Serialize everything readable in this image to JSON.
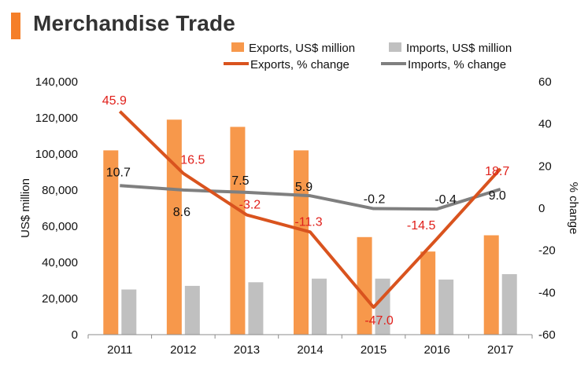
{
  "title": "Merchandise Trade",
  "colors": {
    "exports_bar": "#f7984b",
    "imports_bar": "#c0c0c0",
    "exports_line": "#d9531e",
    "imports_line": "#7f7f7f",
    "exports_label": "#e0201b",
    "imports_label": "#111111",
    "title_accent": "#f57f29"
  },
  "chart_data": {
    "type": "bar+line",
    "categories": [
      "2011",
      "2012",
      "2013",
      "2014",
      "2015",
      "2016",
      "2017"
    ],
    "series": [
      {
        "name": "Exports, US$ million",
        "type": "bar",
        "axis": "left",
        "values": [
          102000,
          119000,
          115000,
          102000,
          54000,
          46000,
          55000
        ]
      },
      {
        "name": "Imports, US$ million",
        "type": "bar",
        "axis": "left",
        "values": [
          25000,
          27000,
          29000,
          31000,
          31000,
          30500,
          33500
        ]
      },
      {
        "name": "Exports, % change",
        "type": "line",
        "axis": "right",
        "values": [
          45.9,
          16.5,
          -3.2,
          -11.3,
          -47.0,
          -14.5,
          18.7
        ],
        "labels": [
          "45.9",
          "16.5",
          "-3.2",
          "-11.3",
          "-47.0",
          "-14.5",
          "18.7"
        ]
      },
      {
        "name": "Imports, % change",
        "type": "line",
        "axis": "right",
        "values": [
          10.7,
          8.6,
          7.5,
          5.9,
          -0.2,
          -0.4,
          9.0
        ],
        "labels": [
          "10.7",
          "8.6",
          "7.5",
          "5.9",
          "-0.2",
          "-0.4",
          "9.0"
        ]
      }
    ],
    "left_axis": {
      "label": "US$ million",
      "ylim": [
        0,
        140000
      ],
      "ticks": [
        "0",
        "20,000",
        "40,000",
        "60,000",
        "80,000",
        "100,000",
        "120,000",
        "140,000"
      ]
    },
    "right_axis": {
      "label": "% change",
      "ylim": [
        -60,
        60
      ],
      "ticks": [
        "-60",
        "-40",
        "-20",
        "0",
        "20",
        "40",
        "60"
      ]
    },
    "legend": "top",
    "grid": false
  }
}
